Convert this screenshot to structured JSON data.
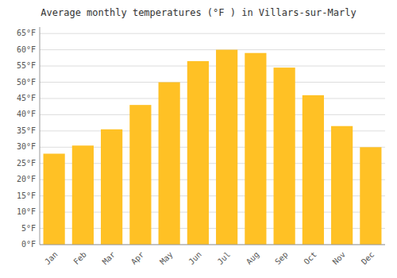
{
  "chart_data": {
    "type": "bar",
    "title": "Average monthly temperatures (°F ) in Villars-sur-Marly",
    "categories": [
      "Jan",
      "Feb",
      "Mar",
      "Apr",
      "May",
      "Jun",
      "Jul",
      "Aug",
      "Sep",
      "Oct",
      "Nov",
      "Dec"
    ],
    "values": [
      28,
      30.5,
      35.5,
      43,
      50,
      56.5,
      60,
      59,
      54.5,
      46,
      36.5,
      30
    ],
    "color": "#FFC125",
    "ylim": [
      0,
      67
    ],
    "yticks": [
      {
        "value": 0,
        "label": "0°F"
      },
      {
        "value": 5,
        "label": "5°F"
      },
      {
        "value": 10,
        "label": "10°F"
      },
      {
        "value": 15,
        "label": "15°F"
      },
      {
        "value": 20,
        "label": "20°F"
      },
      {
        "value": 25,
        "label": "25°F"
      },
      {
        "value": 30,
        "label": "30°F"
      },
      {
        "value": 35,
        "label": "35°F"
      },
      {
        "value": 40,
        "label": "40°F"
      },
      {
        "value": 45,
        "label": "45°F"
      },
      {
        "value": 50,
        "label": "50°F"
      },
      {
        "value": 55,
        "label": "55°F"
      },
      {
        "value": 60,
        "label": "60°F"
      },
      {
        "value": 65,
        "label": "65°F"
      }
    ],
    "grid": true
  }
}
